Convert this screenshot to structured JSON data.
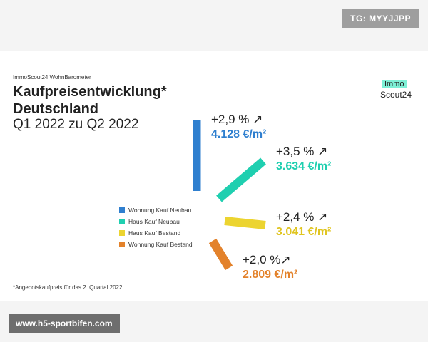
{
  "badge": "TG: MYYJJPP",
  "header": {
    "kicker": "ImmoScout24 WohnBarometer",
    "title": "Kaufpreisentwicklung*",
    "subtitle": "Deutschland",
    "period": "Q1 2022 zu Q2 2022"
  },
  "logo": {
    "top": "Immo",
    "bottom": "Scout24"
  },
  "legend": [
    "Wohnung Kauf Neubau",
    "Haus Kauf Neubau",
    "Haus Kauf Bestand",
    "Wohnung Kauf Bestand"
  ],
  "entries": [
    {
      "change": "+2,9 % ↗",
      "price": "4.128 €/m²"
    },
    {
      "change": "+3,5 % ↗",
      "price": "3.634 €/m²"
    },
    {
      "change": "+2,4 % ↗",
      "price": "3.041 €/m²"
    },
    {
      "change": "+2,0 %↗",
      "price": "2.809 €/m²"
    }
  ],
  "footnote": "*Angebotskaufpreis für das 2. Quartal 2022",
  "watermark": "www.h5-sportbifen.com"
}
